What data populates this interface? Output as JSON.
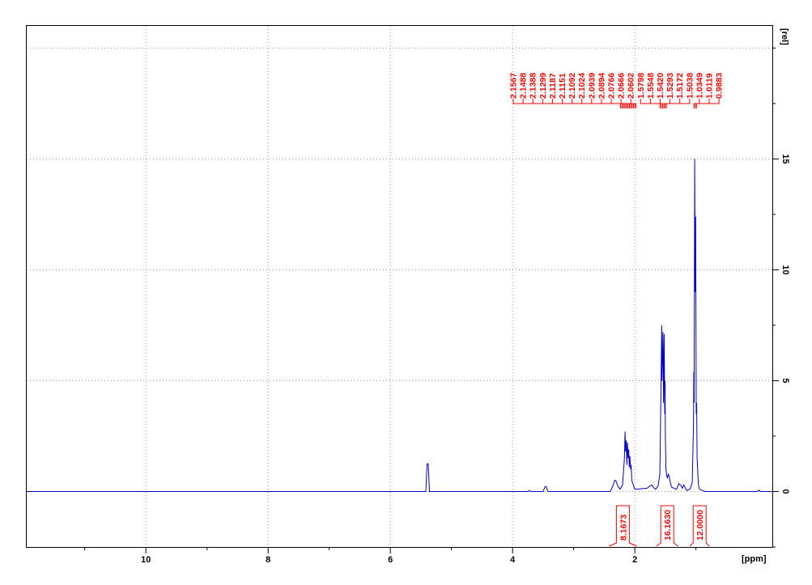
{
  "chart_data": {
    "type": "line",
    "title": "",
    "xlabel": "[ppm]",
    "ylabel": "[rel]",
    "xlim": [
      11.95,
      -0.25
    ],
    "ylim": [
      -2.5,
      21
    ],
    "x_reversed": true,
    "grid": true,
    "x_ticks": [
      10,
      8,
      6,
      4,
      2
    ],
    "y_ticks": [
      0,
      5,
      10,
      15
    ],
    "colors": {
      "spectrum": "#0000cc",
      "annotation": "#ff0000",
      "grid": "#999999",
      "axis": "#000000"
    },
    "series": [
      {
        "x": [
          11.95,
          5.42,
          5.4,
          5.38,
          5.36,
          4.0,
          3.75,
          3.72,
          3.7,
          3.5,
          3.47,
          3.45,
          3.42,
          2.4,
          2.36,
          2.33,
          2.31,
          2.28,
          2.24,
          2.2,
          2.17,
          2.16,
          2.15,
          2.14,
          2.13,
          2.12,
          2.11,
          2.1,
          2.09,
          2.08,
          2.07,
          2.06,
          2.05,
          2.0,
          1.8,
          1.75,
          1.72,
          1.7,
          1.66,
          1.62,
          1.59,
          1.58,
          1.56,
          1.555,
          1.54,
          1.53,
          1.52,
          1.51,
          1.505,
          1.5,
          1.49,
          1.47,
          1.45,
          1.4,
          1.32,
          1.28,
          1.25,
          1.22,
          1.2,
          1.15,
          1.1,
          1.06,
          1.04,
          1.035,
          1.03,
          1.02,
          1.012,
          1.005,
          0.995,
          0.988,
          0.98,
          0.96,
          0.94,
          0.9,
          0.85,
          0.8,
          0.7,
          0.0,
          -0.03,
          -0.06,
          -0.25
        ],
        "y": [
          0,
          0,
          1.25,
          1.25,
          0,
          0,
          0,
          0.05,
          0,
          0,
          0.22,
          0.22,
          0,
          0,
          0.25,
          0.5,
          0.5,
          0.25,
          0.1,
          0.3,
          1.5,
          2.7,
          1.8,
          2.3,
          1.2,
          2.2,
          1.5,
          1.9,
          1.1,
          1.6,
          1.0,
          1.2,
          0.5,
          0.1,
          0.15,
          0.25,
          0.3,
          0.2,
          0.1,
          0.25,
          0.8,
          3.0,
          7.5,
          5.0,
          7.2,
          4.0,
          7.1,
          3.5,
          5.0,
          2.5,
          1.0,
          0.6,
          0.8,
          0.2,
          0.1,
          0.35,
          0.3,
          0.15,
          0.3,
          0.05,
          0.1,
          0.4,
          3.0,
          5.4,
          4.0,
          15.0,
          9.0,
          12.4,
          3.5,
          4.0,
          1.5,
          0.3,
          0.1,
          0.05,
          0.0,
          0.0,
          0.0,
          0.0,
          0.06,
          0.0,
          0.0
        ]
      }
    ],
    "peak_labels": [
      "2.1567",
      "2.1488",
      "2.1388",
      "2.1299",
      "2.1187",
      "2.1151",
      "2.1092",
      "2.1024",
      "2.0939",
      "2.0894",
      "2.0766",
      "2.0666",
      "2.0602",
      "1.5798",
      "1.5548",
      "1.5420",
      "1.5293",
      "1.5172",
      "1.5038",
      "1.0349",
      "1.0119",
      "0.9883"
    ],
    "integrals": [
      {
        "label": "8.1673",
        "from": 2.42,
        "to": 1.97
      },
      {
        "label": "16.1630",
        "from": 1.65,
        "to": 1.29
      },
      {
        "label": "12.0000",
        "from": 1.1,
        "to": 0.78
      }
    ]
  }
}
